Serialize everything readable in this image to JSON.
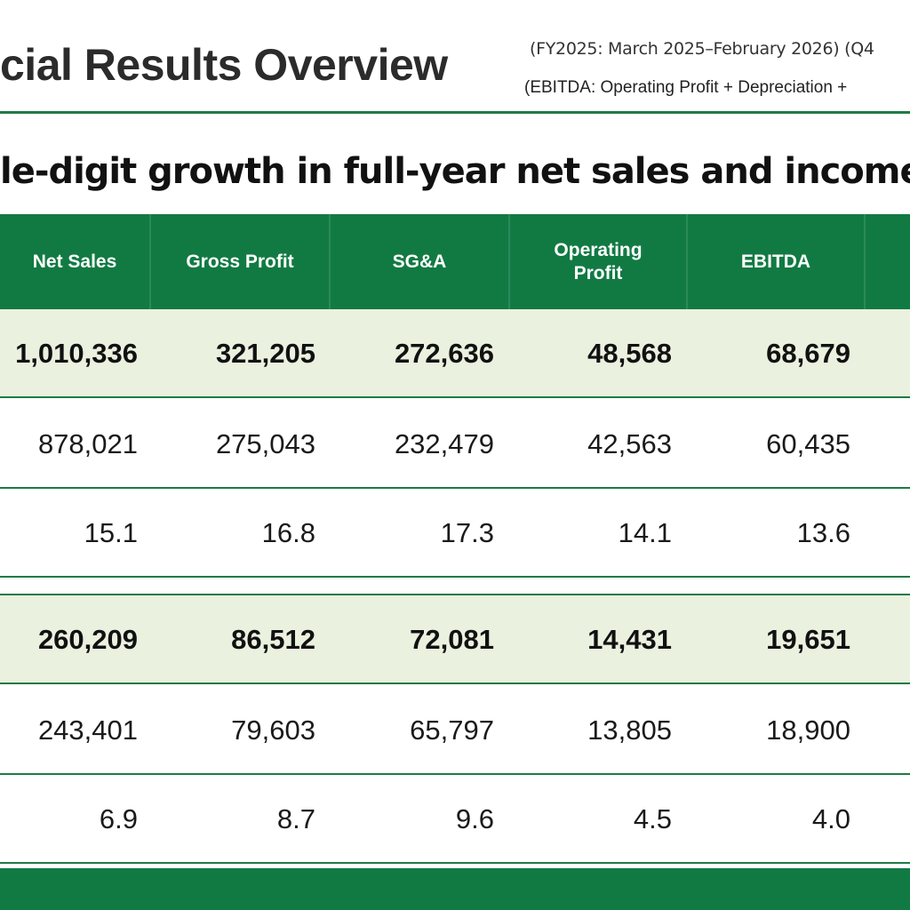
{
  "header": {
    "title": "cial Results Overview",
    "period_note": "(FY2025: March 2025–February 2026) (Q4",
    "ebitda_note": "(EBITDA: Operating Profit + Depreciation +"
  },
  "headline": "le-digit growth in full-year net sales and income.",
  "table": {
    "columns": [
      "Net Sales",
      "Gross Profit",
      "SG&A",
      "Operating Profit",
      "EBITDA"
    ],
    "rows": [
      {
        "emphasis": true,
        "values": [
          "1,010,336",
          "321,205",
          "272,636",
          "48,568",
          "68,679"
        ]
      },
      {
        "emphasis": false,
        "values": [
          "878,021",
          "275,043",
          "232,479",
          "42,563",
          "60,435"
        ]
      },
      {
        "emphasis": false,
        "values": [
          "15.1",
          "16.8",
          "17.3",
          "14.1",
          "13.6"
        ]
      },
      {
        "emphasis": true,
        "values": [
          "260,209",
          "86,512",
          "72,081",
          "14,431",
          "19,651"
        ]
      },
      {
        "emphasis": false,
        "values": [
          "243,401",
          "79,603",
          "65,797",
          "13,805",
          "18,900"
        ]
      },
      {
        "emphasis": false,
        "values": [
          "6.9",
          "8.7",
          "9.6",
          "4.5",
          "4.0"
        ]
      }
    ]
  },
  "colors": {
    "brand_green": "#117a43",
    "highlight_row": "#eaf1df"
  }
}
